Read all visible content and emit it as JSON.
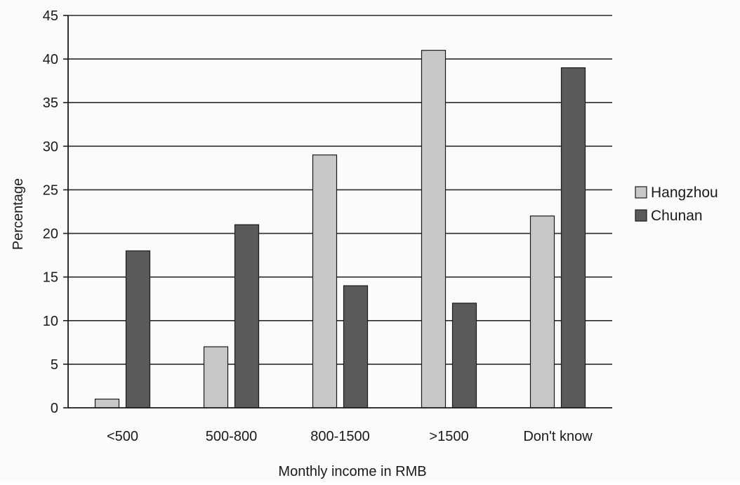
{
  "chart_data": {
    "type": "bar",
    "xlabel": "Monthly income in RMB",
    "ylabel": "Percentage",
    "ylim": [
      0,
      45
    ],
    "ytick_step": 5,
    "grid": true,
    "legend_position": "right",
    "categories": [
      "<500",
      "500-800",
      "800-1500",
      ">1500",
      "Don't know"
    ],
    "series": [
      {
        "name": "Hangzhou",
        "color": "#c8c8c8",
        "values": [
          1,
          7,
          29,
          41,
          22
        ]
      },
      {
        "name": "Chunan",
        "color": "#5a5a5a",
        "values": [
          18,
          21,
          14,
          12,
          39
        ]
      }
    ]
  }
}
